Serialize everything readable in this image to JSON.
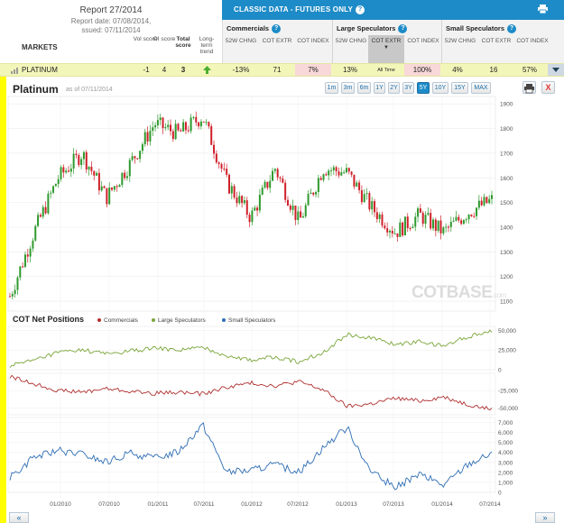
{
  "report": {
    "title": "Report 27/2014",
    "date": "Report date: 07/08/2014,",
    "issued": "ssued: 07/11/2014"
  },
  "table": {
    "markets_label": "MARKETS",
    "col_vol": "Vol score",
    "col_oi": "OI score",
    "col_total": "Total score",
    "col_trend": "Long-term trend"
  },
  "banner": {
    "title": "CLASSIC DATA - FUTURES ONLY",
    "help": "?"
  },
  "groups": [
    {
      "title": "Commercials",
      "subs": [
        "52W CHNG",
        "COT EXTR",
        "COT INDEX"
      ]
    },
    {
      "title": "Large Speculators",
      "subs": [
        "52W CHNG",
        "COT EXTR",
        "COT INDEX"
      ]
    },
    {
      "title": "Small Speculators",
      "subs": [
        "52W CHNG",
        "COT EXTR",
        "COT INDEX"
      ]
    }
  ],
  "row": {
    "market": "PLATINUM",
    "vol": "-1",
    "oi": "4",
    "total": "3",
    "comm_chng": "-13%",
    "comm_extr": "71",
    "comm_index": "7%",
    "ls_chng": "13%",
    "ls_extr": "All Time",
    "ls_index": "100%",
    "ss_chng": "4%",
    "ss_extr": "16",
    "ss_index": "57%"
  },
  "chart": {
    "title": "Platinum",
    "asof": "as of 07/11/2014",
    "ranges": [
      "1m",
      "3m",
      "6m",
      "1Y",
      "2Y",
      "3Y",
      "5Y",
      "10Y",
      "15Y",
      "MAX"
    ],
    "active_range": "5Y",
    "close_label": "X",
    "watermark_main": "COT",
    "watermark_sub": "BASE",
    "watermark_tld": ".com"
  },
  "cot": {
    "title": "COT Net Positions",
    "legend": [
      "Commercials",
      "Large Speculators",
      "Small Speculators"
    ]
  },
  "nav": {
    "prev": "«",
    "next": "»"
  },
  "colors": {
    "accent": "#1d8bc7",
    "commercials": "#b03030",
    "large_specs": "#7aa63a",
    "small_specs": "#2e6db4",
    "candle_up": "#2e9a2e",
    "candle_down": "#d0202a"
  },
  "chart_data": [
    {
      "type": "candlestick",
      "title": "Platinum",
      "x_tick_labels": [
        "01/2010",
        "07/2010",
        "01/2011",
        "07/2011",
        "01/2012",
        "07/2012",
        "01/2013",
        "07/2013",
        "01/2014",
        "07/2014"
      ],
      "y_tick_labels": [
        "1100",
        "1200",
        "1300",
        "1400",
        "1500",
        "1600",
        "1700",
        "1800",
        "1900"
      ],
      "ylim": [
        1060,
        1930
      ],
      "x": [
        "2009-07",
        "2009-10",
        "2010-01",
        "2010-04",
        "2010-07",
        "2010-10",
        "2011-01",
        "2011-04",
        "2011-07",
        "2011-10",
        "2012-01",
        "2012-04",
        "2012-07",
        "2012-10",
        "2013-01",
        "2013-04",
        "2013-07",
        "2013-10",
        "2014-01",
        "2014-04",
        "2014-07"
      ],
      "close": [
        1120,
        1380,
        1600,
        1700,
        1520,
        1660,
        1820,
        1780,
        1850,
        1580,
        1440,
        1640,
        1420,
        1640,
        1620,
        1480,
        1380,
        1450,
        1380,
        1460,
        1510
      ]
    },
    {
      "type": "line",
      "title": "COT Net Positions",
      "series": [
        {
          "name": "Large Speculators",
          "axis_ticks": [
            "0",
            "25,000",
            "50,000"
          ],
          "ylim": [
            0,
            55000
          ],
          "values": [
            5000,
            12000,
            22000,
            25000,
            20000,
            24000,
            27000,
            25000,
            28000,
            18000,
            12000,
            16000,
            10000,
            22000,
            45000,
            40000,
            32000,
            36000,
            30000,
            42000,
            50000
          ]
        },
        {
          "name": "Commercials",
          "axis_ticks": [
            "-25,000",
            "-50,000"
          ],
          "ylim": [
            -60000,
            0
          ],
          "values": [
            -5000,
            -15000,
            -25000,
            -27000,
            -22000,
            -26000,
            -29000,
            -27000,
            -30000,
            -20000,
            -14000,
            -18000,
            -12000,
            -24000,
            -48000,
            -44000,
            -36000,
            -40000,
            -34000,
            -45000,
            -52000
          ]
        },
        {
          "name": "Small Speculators",
          "axis_ticks": [
            "0",
            "1,000",
            "2,000",
            "3,000",
            "4,000",
            "5,000",
            "6,000",
            "7,000"
          ],
          "ylim": [
            0,
            7500
          ],
          "values": [
            1500,
            3500,
            4200,
            3800,
            3000,
            3900,
            3400,
            4100,
            6800,
            2000,
            2200,
            2800,
            2000,
            4500,
            6500,
            2000,
            500,
            1800,
            700,
            2800,
            3900
          ]
        }
      ]
    }
  ]
}
